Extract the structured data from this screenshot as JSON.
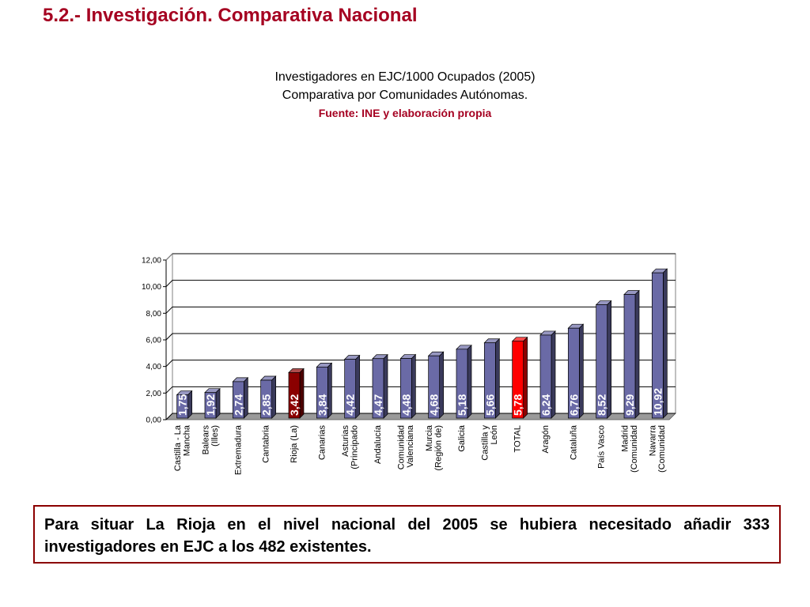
{
  "slide": {
    "title": "5.2.- Investigación. Comparativa Nacional"
  },
  "chart_title": {
    "line1": "Investigadores en EJC/1000 Ocupados (2005)",
    "line2": "Comparativa por Comunidades Autónomas.",
    "source": "Fuente: INE y elaboración propia"
  },
  "note": {
    "text": "Para situar La Rioja en el nivel nacional del 2005 se hubiera necesitado añadir 333 investigadores en EJC a los 482 existentes."
  },
  "chart_data": {
    "type": "bar",
    "title": "Investigadores en EJC/1000 Ocupados (2005)",
    "categories": [
      [
        "Castilla - La",
        "Mancha"
      ],
      [
        "Balears",
        "(Illes)"
      ],
      [
        "Extremadura"
      ],
      [
        "Cantabria"
      ],
      [
        "Rioja (La)"
      ],
      [
        "Canarias"
      ],
      [
        "Asturias",
        "(Principado"
      ],
      [
        "Andalucía"
      ],
      [
        "Comunidad",
        "Valenciana"
      ],
      [
        "Murcia",
        "(Región de)"
      ],
      [
        "Galicia"
      ],
      [
        "Castilla y",
        "León"
      ],
      [
        "TOTAL"
      ],
      [
        "Aragón"
      ],
      [
        "Cataluña"
      ],
      [
        "País Vasco"
      ],
      [
        "Madrid",
        "(Comunidad"
      ],
      [
        "Navarra",
        "(Comunidad"
      ]
    ],
    "values": [
      1.75,
      1.92,
      2.74,
      2.85,
      3.42,
      3.84,
      4.42,
      4.47,
      4.48,
      4.68,
      5.18,
      5.66,
      5.78,
      6.24,
      6.76,
      8.52,
      9.29,
      10.92
    ],
    "value_labels": [
      "1,75",
      "1,92",
      "2,74",
      "2,85",
      "3,42",
      "3,84",
      "4,42",
      "4,47",
      "4,48",
      "4,68",
      "5,18",
      "5,66",
      "5,78",
      "6,24",
      "6,76",
      "8,52",
      "9,29",
      "10,92"
    ],
    "highlight": {
      "Rioja (La)": "#8b0000",
      "TOTAL": "#ff0000"
    },
    "default_color": "#6a6aa6",
    "ylim": [
      0,
      12
    ],
    "yticks": [
      0,
      2,
      4,
      6,
      8,
      10,
      12
    ],
    "ytick_labels": [
      "0,00",
      "2,00",
      "4,00",
      "6,00",
      "8,00",
      "10,00",
      "12,00"
    ],
    "grid": true,
    "legend": "none"
  }
}
